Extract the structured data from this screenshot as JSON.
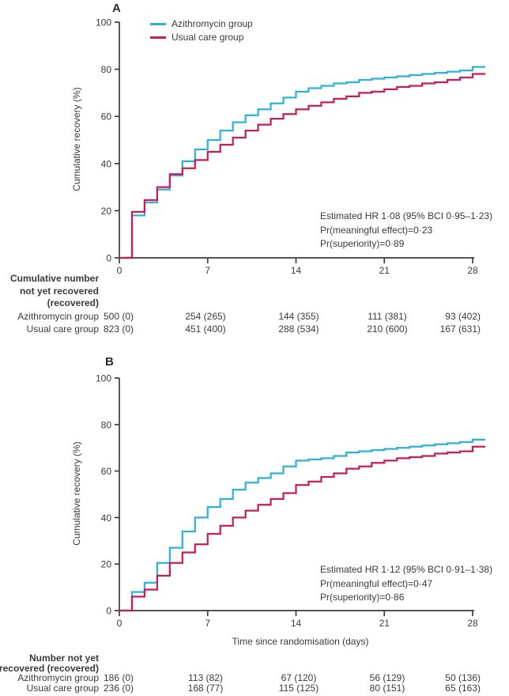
{
  "figure": {
    "panels": [
      {
        "label": "A",
        "ylabel": "Cumulative recovery (%)",
        "xlabel": "",
        "legend": [
          {
            "name": "Azithromycin group",
            "color": "#2fb2d8"
          },
          {
            "name": "Usual care group",
            "color": "#c51e58"
          }
        ],
        "annotation": [
          "Estimated HR 1·08 (95% BCI 0·95–1·23)",
          "Pr(meaningful effect)=0·23",
          "Pr(superiority)=0·89"
        ],
        "table": {
          "header": [
            "Cumulative number",
            "not yet recovered",
            "(recovered)"
          ],
          "rows": [
            {
              "label": "Azithromycin group",
              "values": [
                "500 (0)",
                "254 (265)",
                "144 (355)",
                "111 (381)",
                "93 (402)"
              ]
            },
            {
              "label": "Usual care group",
              "values": [
                "823 (0)",
                "451 (400)",
                "288 (534)",
                "210 (600)",
                "167 (631)"
              ]
            }
          ]
        }
      },
      {
        "label": "B",
        "ylabel": "Cumulative recovery (%)",
        "xlabel": "Time since randomisation (days)",
        "legend": [
          {
            "name": "Azithromycin group",
            "color": "#2fb2d8"
          },
          {
            "name": "Usual care group",
            "color": "#c51e58"
          }
        ],
        "annotation": [
          "Estimated HR 1·12 (95% BCI 0·91–1·38)",
          "Pr(meaningful effect)=0·47",
          "Pr(superiority)=0·86"
        ],
        "table": {
          "header": [
            "Number not yet",
            "recovered (recovered)"
          ],
          "rows": [
            {
              "label": "Azithromycin group",
              "values": [
                "186 (0)",
                "113 (82)",
                "67 (120)",
                "56 (129)",
                "50 (136)"
              ]
            },
            {
              "label": "Usual care group",
              "values": [
                "236 (0)",
                "168 (77)",
                "115 (125)",
                "80 (151)",
                "65 (163)"
              ]
            }
          ]
        }
      }
    ],
    "text_color": "#3a3a3a",
    "axis_color": "#3d3d3d"
  },
  "chart_data": [
    {
      "type": "line",
      "subtype": "step",
      "title": "A",
      "xlabel": "",
      "ylabel": "Cumulative recovery (%)",
      "xlim": [
        0,
        29
      ],
      "ylim": [
        0,
        100
      ],
      "xticks": [
        0,
        7,
        14,
        21,
        28
      ],
      "yticks": [
        0,
        20,
        40,
        60,
        80,
        100
      ],
      "grid": false,
      "legend_position": "top-left-inside",
      "x": [
        0,
        1,
        2,
        3,
        4,
        5,
        6,
        7,
        8,
        9,
        10,
        11,
        12,
        13,
        14,
        15,
        16,
        17,
        18,
        19,
        20,
        21,
        22,
        23,
        24,
        25,
        26,
        27,
        28
      ],
      "series": [
        {
          "name": "Azithromycin group",
          "color": "#2fb2d8",
          "values": [
            0,
            18,
            23.5,
            29,
            35,
            41,
            46,
            50,
            54,
            57.5,
            60.5,
            63,
            65.5,
            68,
            70.5,
            72,
            73,
            74,
            74.5,
            75.5,
            76,
            76.5,
            77,
            77.5,
            78,
            78.5,
            79,
            79.5,
            81
          ]
        },
        {
          "name": "Usual care group",
          "color": "#c51e58",
          "values": [
            0,
            19.5,
            24.5,
            30,
            35.5,
            38,
            41.5,
            45,
            48,
            51,
            54,
            56.5,
            59,
            61,
            63,
            64.5,
            66,
            67.5,
            68.5,
            70,
            70.5,
            71.5,
            72.5,
            73,
            74,
            74.5,
            75.5,
            76.5,
            78
          ]
        }
      ],
      "annotations": [
        "Estimated HR 1·08 (95% BCI 0·95–1·23)",
        "Pr(meaningful effect)=0·23",
        "Pr(superiority)=0·89"
      ]
    },
    {
      "type": "line",
      "subtype": "step",
      "title": "B",
      "xlabel": "Time since randomisation (days)",
      "ylabel": "Cumulative recovery (%)",
      "xlim": [
        0,
        29
      ],
      "ylim": [
        0,
        100
      ],
      "xticks": [
        0,
        7,
        14,
        21,
        28
      ],
      "yticks": [
        0,
        20,
        40,
        60,
        80,
        100
      ],
      "grid": false,
      "legend_position": "none",
      "x": [
        0,
        1,
        2,
        3,
        4,
        5,
        6,
        7,
        8,
        9,
        10,
        11,
        12,
        13,
        14,
        15,
        16,
        17,
        18,
        19,
        20,
        21,
        22,
        23,
        24,
        25,
        26,
        27,
        28
      ],
      "series": [
        {
          "name": "Azithromycin group",
          "color": "#2fb2d8",
          "values": [
            0,
            8,
            12,
            20.5,
            27,
            34,
            40,
            44.5,
            48,
            52,
            55,
            57,
            59,
            62,
            64.5,
            65,
            65.5,
            66.5,
            68,
            68.5,
            69,
            69.5,
            70,
            70.5,
            71,
            71.5,
            72,
            72.5,
            73.5
          ]
        },
        {
          "name": "Usual care group",
          "color": "#c51e58",
          "values": [
            0,
            6,
            9,
            15,
            20.5,
            25,
            28.5,
            33,
            36.5,
            40,
            43,
            45.5,
            48,
            50.5,
            54,
            55.5,
            57.5,
            59,
            61,
            62,
            63.5,
            64.5,
            65.5,
            66,
            66.5,
            67.5,
            68,
            68.5,
            70.5
          ]
        }
      ],
      "annotations": [
        "Estimated HR 1·12 (95% BCI 0·91–1·38)",
        "Pr(meaningful effect)=0·47",
        "Pr(superiority)=0·86"
      ]
    }
  ]
}
